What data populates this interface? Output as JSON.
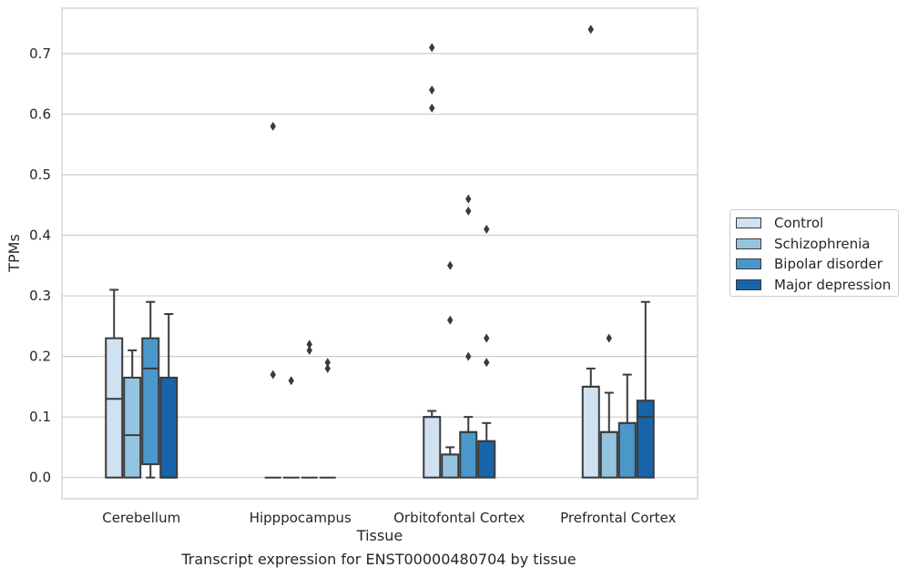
{
  "chart_data": {
    "type": "box",
    "xlabel": "Tissue",
    "ylabel": "TPMs",
    "caption": "Transcript expression for ENST00000480704 by tissue",
    "ylim": [
      -0.035,
      0.775
    ],
    "yticks": [
      "0.0",
      "0.1",
      "0.2",
      "0.3",
      "0.4",
      "0.5",
      "0.6",
      "0.7"
    ],
    "grid": "horizontal",
    "legend_position": "right",
    "categories": [
      "Cerebellum",
      "Hipppocampus",
      "Orbitofontal Cortex",
      "Prefrontal Cortex"
    ],
    "series": [
      {
        "name": "Control",
        "color": "#d0e1f2",
        "boxes": [
          {
            "q1": 0.0,
            "median": 0.13,
            "q3": 0.23,
            "whisker_low": 0.0,
            "whisker_high": 0.31,
            "outliers": []
          },
          {
            "q1": 0.0,
            "median": 0.0,
            "q3": 0.0,
            "whisker_low": 0.0,
            "whisker_high": 0.0,
            "outliers": [
              0.17,
              0.58
            ]
          },
          {
            "q1": 0.0,
            "median": 0.1,
            "q3": 0.1,
            "whisker_low": 0.0,
            "whisker_high": 0.11,
            "outliers": [
              0.61,
              0.64,
              0.71
            ]
          },
          {
            "q1": 0.0,
            "median": 0.15,
            "q3": 0.15,
            "whisker_low": 0.0,
            "whisker_high": 0.18,
            "outliers": [
              0.74
            ]
          }
        ]
      },
      {
        "name": "Schizophrenia",
        "color": "#94c4df",
        "boxes": [
          {
            "q1": 0.0,
            "median": 0.07,
            "q3": 0.165,
            "whisker_low": 0.0,
            "whisker_high": 0.21,
            "outliers": []
          },
          {
            "q1": 0.0,
            "median": 0.0,
            "q3": 0.0,
            "whisker_low": 0.0,
            "whisker_high": 0.0,
            "outliers": [
              0.16
            ]
          },
          {
            "q1": 0.0,
            "median": 0.038,
            "q3": 0.038,
            "whisker_low": 0.0,
            "whisker_high": 0.05,
            "outliers": [
              0.26,
              0.35
            ]
          },
          {
            "q1": 0.0,
            "median": 0.075,
            "q3": 0.075,
            "whisker_low": 0.0,
            "whisker_high": 0.14,
            "outliers": [
              0.23
            ]
          }
        ]
      },
      {
        "name": "Bipolar disorder",
        "color": "#4a98c9",
        "boxes": [
          {
            "q1": 0.022,
            "median": 0.18,
            "q3": 0.23,
            "whisker_low": 0.0,
            "whisker_high": 0.29,
            "outliers": []
          },
          {
            "q1": 0.0,
            "median": 0.0,
            "q3": 0.0,
            "whisker_low": 0.0,
            "whisker_high": 0.0,
            "outliers": [
              0.21,
              0.22
            ]
          },
          {
            "q1": 0.0,
            "median": 0.075,
            "q3": 0.075,
            "whisker_low": 0.0,
            "whisker_high": 0.1,
            "outliers": [
              0.2,
              0.44,
              0.46
            ]
          },
          {
            "q1": 0.0,
            "median": 0.09,
            "q3": 0.09,
            "whisker_low": 0.0,
            "whisker_high": 0.17,
            "outliers": []
          }
        ]
      },
      {
        "name": "Major depression",
        "color": "#1764ab",
        "boxes": [
          {
            "q1": 0.0,
            "median": 0.0,
            "q3": 0.165,
            "whisker_low": 0.0,
            "whisker_high": 0.27,
            "outliers": []
          },
          {
            "q1": 0.0,
            "median": 0.0,
            "q3": 0.0,
            "whisker_low": 0.0,
            "whisker_high": 0.0,
            "outliers": [
              0.18,
              0.19
            ]
          },
          {
            "q1": 0.0,
            "median": 0.06,
            "q3": 0.06,
            "whisker_low": 0.0,
            "whisker_high": 0.09,
            "outliers": [
              0.19,
              0.23,
              0.41
            ]
          },
          {
            "q1": 0.0,
            "median": 0.1,
            "q3": 0.127,
            "whisker_low": 0.0,
            "whisker_high": 0.29,
            "outliers": []
          }
        ]
      }
    ]
  }
}
